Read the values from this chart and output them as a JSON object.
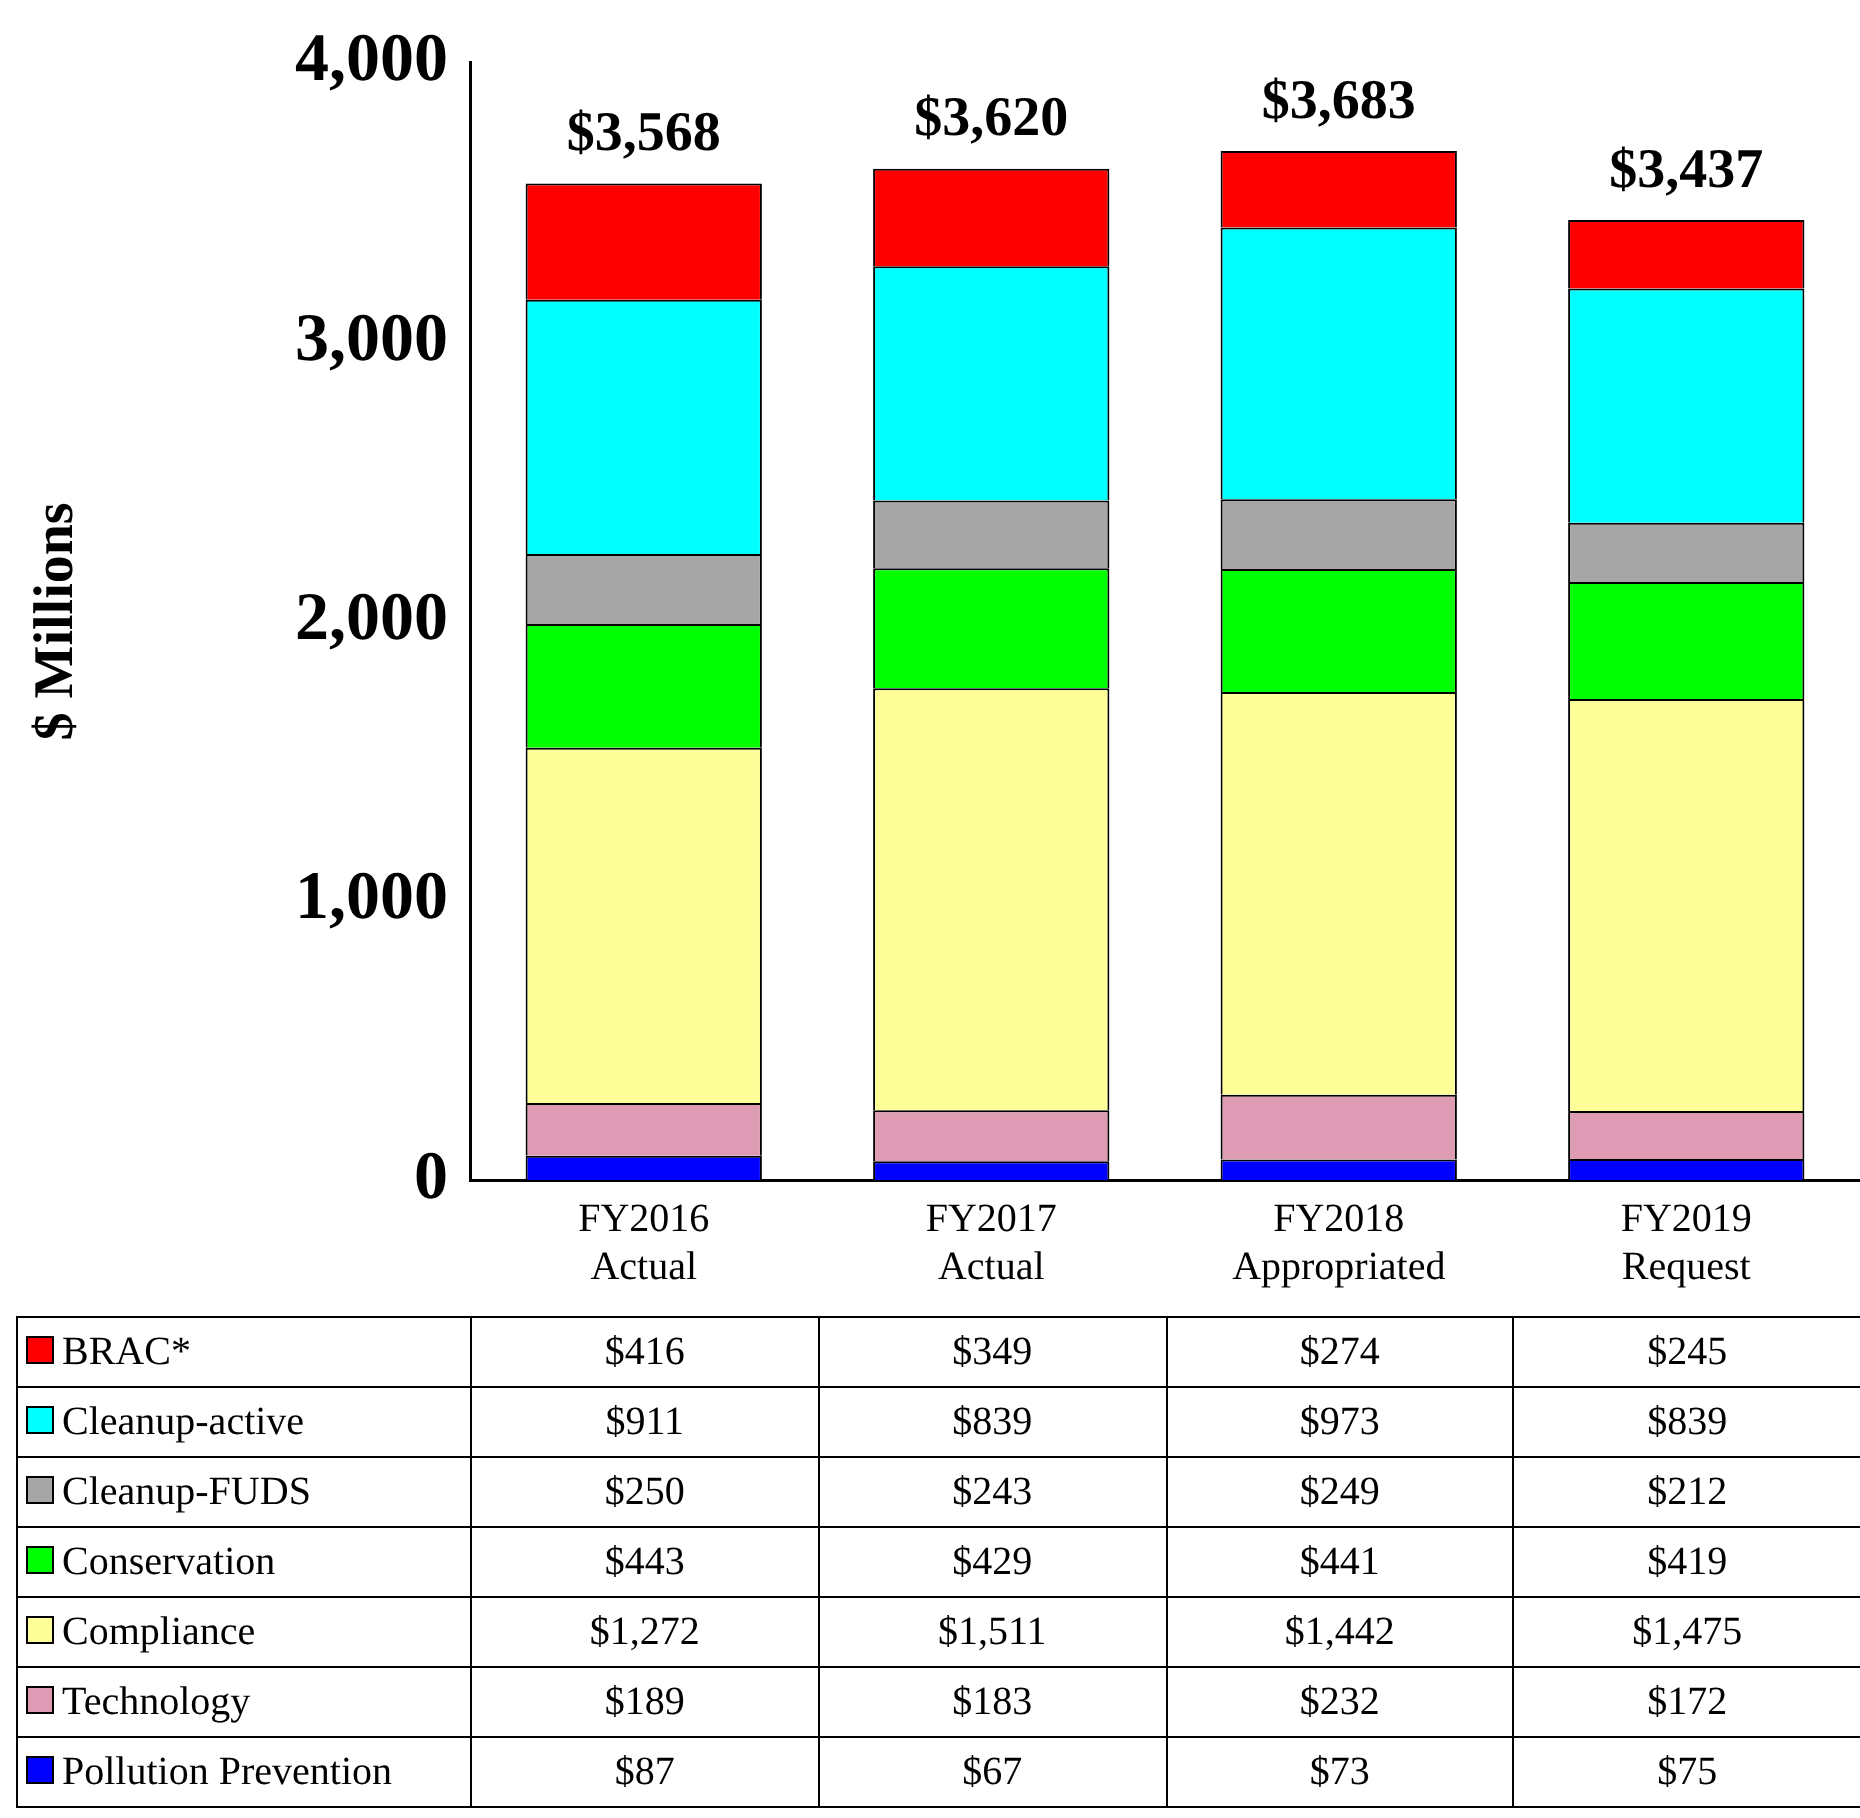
{
  "chart_data": {
    "type": "bar",
    "stacked": true,
    "ylabel": "$ Millions",
    "categories": [
      "FY2016 Actual",
      "FY2017 Actual",
      "FY2018 Appropriated",
      "FY2019 Request"
    ],
    "ylim": [
      0,
      4000
    ],
    "yticks": [
      {
        "value": 0,
        "label": "0"
      },
      {
        "value": 1000,
        "label": "1,000"
      },
      {
        "value": 2000,
        "label": "2,000"
      },
      {
        "value": 3000,
        "label": "3,000"
      },
      {
        "value": 4000,
        "label": "4,000"
      }
    ],
    "grid": false,
    "legend": "bottom",
    "totals": [
      "$3,568",
      "$3,620",
      "$3,683",
      "$3,437"
    ],
    "series": [
      {
        "name": "Pollution Prevention",
        "color": "#0000ff",
        "values": [
          87,
          67,
          73,
          75
        ],
        "value_labels": [
          "$87",
          "$67",
          "$73",
          "$75"
        ]
      },
      {
        "name": "Technology",
        "color": "#dd9cb3",
        "values": [
          189,
          183,
          232,
          172
        ],
        "value_labels": [
          "$189",
          "$183",
          "$232",
          "$172"
        ]
      },
      {
        "name": "Compliance",
        "color": "#ffff99",
        "values": [
          1272,
          1511,
          1442,
          1475
        ],
        "value_labels": [
          "$1,272",
          "$1,511",
          "$1,442",
          "$1,475"
        ]
      },
      {
        "name": "Conservation",
        "color": "#00ff00",
        "values": [
          443,
          429,
          441,
          419
        ],
        "value_labels": [
          "$443",
          "$429",
          "$441",
          "$419"
        ]
      },
      {
        "name": "Cleanup-FUDS",
        "color": "#a6a6a6",
        "values": [
          250,
          243,
          249,
          212
        ],
        "value_labels": [
          "$250",
          "$243",
          "$249",
          "$212"
        ]
      },
      {
        "name": "Cleanup-active",
        "color": "#00ffff",
        "values": [
          911,
          839,
          973,
          839
        ],
        "value_labels": [
          "$911",
          "$839",
          "$973",
          "$839"
        ]
      },
      {
        "name": "BRAC*",
        "color": "#ff0000",
        "values": [
          416,
          349,
          274,
          245
        ],
        "value_labels": [
          "$416",
          "$349",
          "$274",
          "$245"
        ]
      }
    ]
  }
}
